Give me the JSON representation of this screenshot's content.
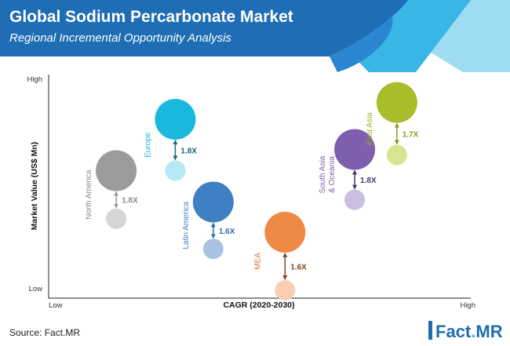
{
  "header": {
    "title": "Global Sodium Percarbonate Market",
    "subtitle": "Regional Incremental Opportunity Analysis"
  },
  "chart_data": {
    "type": "bubble",
    "xlabel": "CAGR (2020-2030)",
    "ylabel": "Market Value (US$ Mn)",
    "x_ticks": {
      "low": "Low",
      "high": "High"
    },
    "y_ticks": {
      "low": "Low",
      "high": "High"
    },
    "grid": false,
    "series": [
      {
        "region": "North America",
        "growth": "1.8X",
        "color": "#9b9b9b",
        "current_color": "#d6d6d6",
        "label_color": "#8a8a8a",
        "growth_color": "#8a8a8a",
        "arrow_color": "#9b9b9b",
        "x_rel": 0.16,
        "y_rel_current": 0.355,
        "y_rel_future": 0.57
      },
      {
        "region": "Europe",
        "growth": "1.8X",
        "color": "#1ab8dc",
        "current_color": "#b4e9f5",
        "label_color": "#1ab8dc",
        "growth_color": "#14657a",
        "arrow_color": "#1a6b7d",
        "x_rel": 0.3,
        "y_rel_current": 0.57,
        "y_rel_future": 0.8
      },
      {
        "region": "Latin America",
        "growth": "1.6X",
        "color": "#3f7fc4",
        "current_color": "#a8c3e2",
        "label_color": "#3f7fc4",
        "growth_color": "#2e6ca8",
        "arrow_color": "#2e6ca8",
        "x_rel": 0.39,
        "y_rel_current": 0.22,
        "y_rel_future": 0.43
      },
      {
        "region": "MEA",
        "growth": "1.6X",
        "color": "#ee8a45",
        "current_color": "#f8cfb3",
        "label_color": "#d2783a",
        "growth_color": "#7a4a22",
        "arrow_color": "#7a4a22",
        "x_rel": 0.56,
        "y_rel_current": 0.035,
        "y_rel_future": 0.295
      },
      {
        "region": "South Asia & Oceania",
        "growth": "1.8X",
        "color": "#7e5eae",
        "current_color": "#cbbedf",
        "label_color": "#7e5eae",
        "growth_color": "#4a3772",
        "arrow_color": "#4a3772",
        "x_rel": 0.725,
        "y_rel_current": 0.44,
        "y_rel_future": 0.665
      },
      {
        "region": "East Asia",
        "growth": "1.7X",
        "color": "#a9bd2a",
        "current_color": "#d8e48f",
        "label_color": "#9aae20",
        "growth_color": "#8a9c1c",
        "arrow_color": "#8a9c1c",
        "x_rel": 0.825,
        "y_rel_current": 0.64,
        "y_rel_future": 0.875
      }
    ]
  },
  "footer": {
    "source": "Source: Fact.MR",
    "logo_left": "Fact",
    "logo_dot": ".",
    "logo_right": "MR"
  }
}
